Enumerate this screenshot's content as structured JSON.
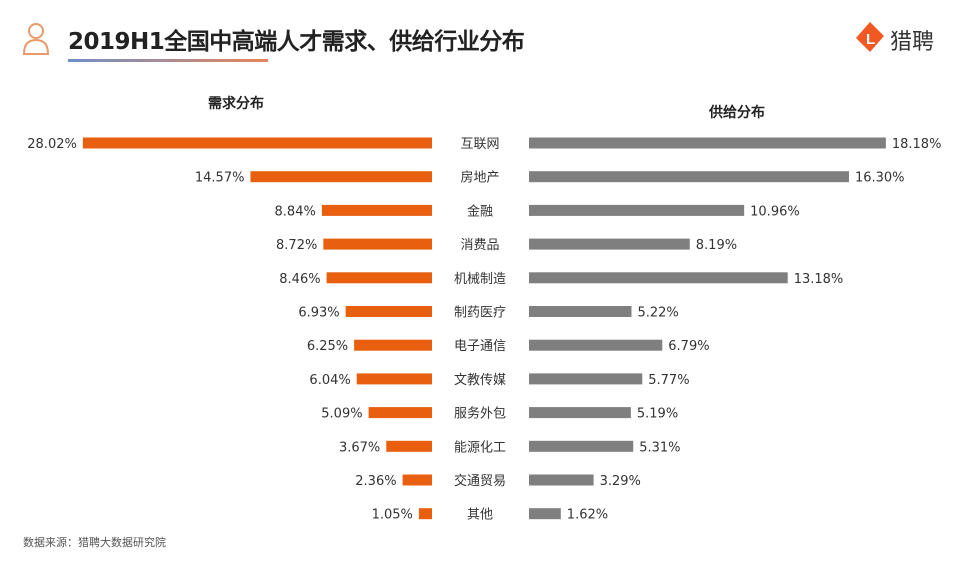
{
  "header": {
    "title": "2019H1全国中高端人才需求、供给行业分布",
    "logo_text": "猎聘",
    "icon": "person-outline-icon",
    "logo_icon": "liepin-L-icon"
  },
  "footer": {
    "source": "数据来源：猎聘大数据研究院"
  },
  "chart_data": {
    "type": "bar",
    "orientation": "horizontal-butterfly",
    "categories": [
      "互联网",
      "房地产",
      "金融",
      "消费品",
      "机械制造",
      "制药医疗",
      "电子通信",
      "文教传媒",
      "服务外包",
      "能源化工",
      "交通贸易",
      "其他"
    ],
    "series": [
      {
        "name": "需求分布",
        "color": "#e8600f",
        "values": [
          28.02,
          14.57,
          8.84,
          8.72,
          8.46,
          6.93,
          6.25,
          6.04,
          5.09,
          3.67,
          2.36,
          1.05
        ]
      },
      {
        "name": "供给分布",
        "color": "#7f7f7f",
        "values": [
          18.18,
          16.3,
          10.96,
          8.19,
          13.18,
          5.22,
          6.79,
          5.77,
          5.19,
          5.31,
          3.29,
          1.62
        ]
      }
    ],
    "value_format": "percent, 2 decimals",
    "grid": false
  }
}
